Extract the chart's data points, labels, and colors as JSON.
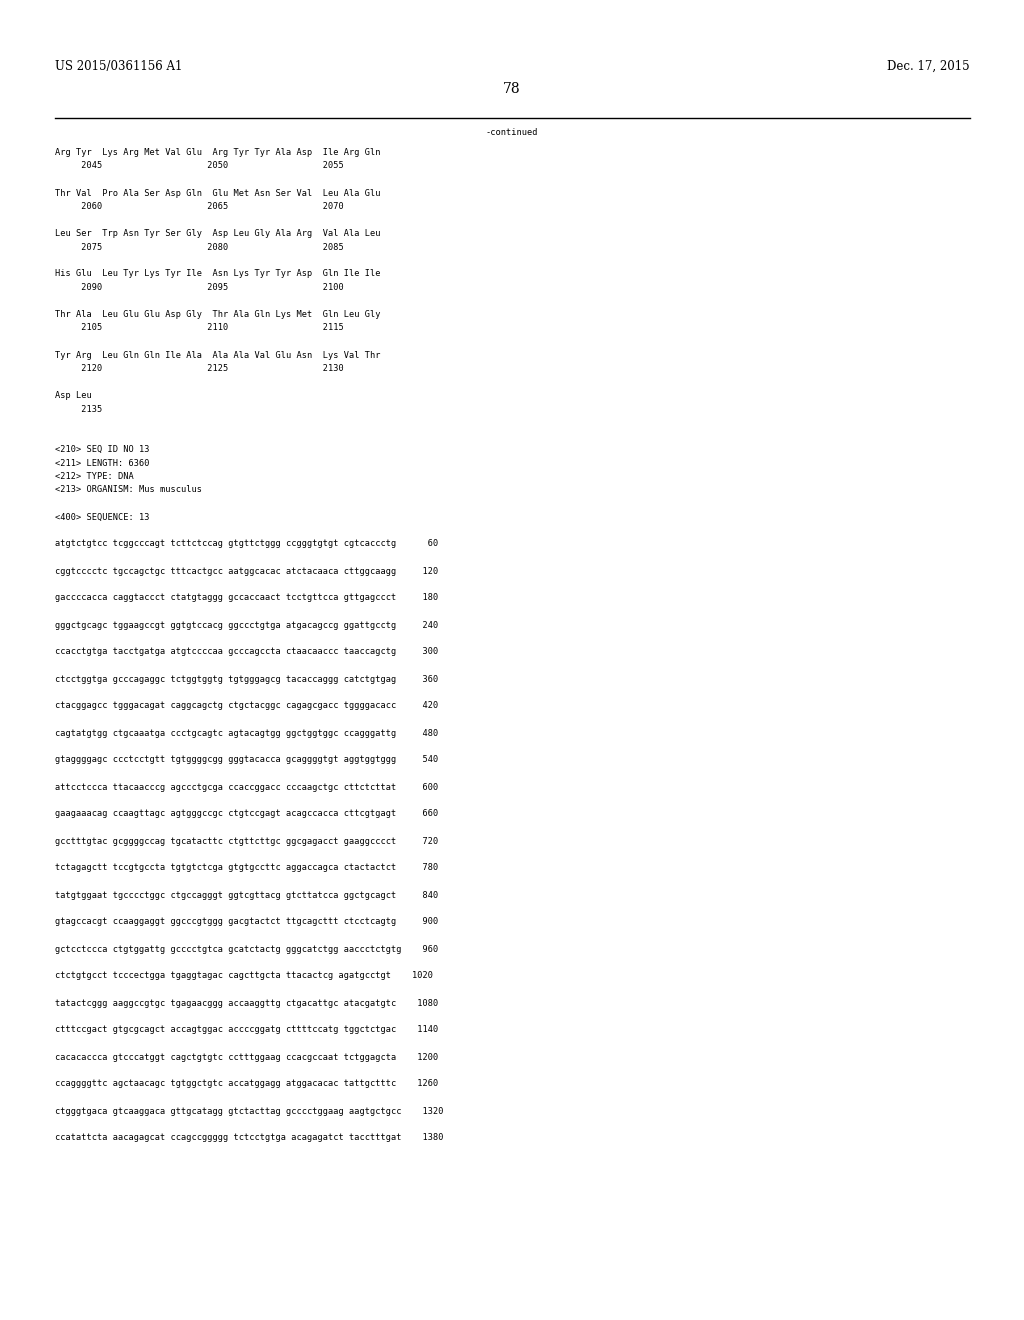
{
  "background_color": "#ffffff",
  "header_left": "US 2015/0361156 A1",
  "header_right": "Dec. 17, 2015",
  "page_number": "78",
  "continued_text": "-continued",
  "mono_fontsize": 6.2,
  "header_fontsize": 8.5,
  "page_num_fontsize": 10,
  "content": [
    "Arg Tyr  Lys Arg Met Val Glu  Arg Tyr Tyr Ala Asp  Ile Arg Gln",
    "     2045                    2050                  2055",
    "",
    "Thr Val  Pro Ala Ser Asp Gln  Glu Met Asn Ser Val  Leu Ala Glu",
    "     2060                    2065                  2070",
    "",
    "Leu Ser  Trp Asn Tyr Ser Gly  Asp Leu Gly Ala Arg  Val Ala Leu",
    "     2075                    2080                  2085",
    "",
    "His Glu  Leu Tyr Lys Tyr Ile  Asn Lys Tyr Tyr Asp  Gln Ile Ile",
    "     2090                    2095                  2100",
    "",
    "Thr Ala  Leu Glu Glu Asp Gly  Thr Ala Gln Lys Met  Gln Leu Gly",
    "     2105                    2110                  2115",
    "",
    "Tyr Arg  Leu Gln Gln Ile Ala  Ala Ala Val Glu Asn  Lys Val Thr",
    "     2120                    2125                  2130",
    "",
    "Asp Leu",
    "     2135",
    "",
    "",
    "<210> SEQ ID NO 13",
    "<211> LENGTH: 6360",
    "<212> TYPE: DNA",
    "<213> ORGANISM: Mus musculus",
    "",
    "<400> SEQUENCE: 13",
    "",
    "atgtctgtcc tcggcccagt tcttctccag gtgttctggg ccgggtgtgt cgtcaccctg      60",
    "",
    "cggtcccctc tgccagctgc tttcactgcc aatggcacac atctacaaca cttggcaagg     120",
    "",
    "gaccccacca caggtaccct ctatgtaggg gccaccaact tcctgttcca gttgagccct     180",
    "",
    "gggctgcagc tggaagccgt ggtgtccacg ggccctgtga atgacagccg ggattgcctg     240",
    "",
    "ccacctgtga tacctgatga atgtccccaa gcccagccta ctaacaaccc taaccagctg     300",
    "",
    "ctcctggtga gcccagaggc tctggtggtg tgtgggagcg tacaccaggg catctgtgag     360",
    "",
    "ctacggagcc tgggacagat caggcagctg ctgctacggc cagagcgacc tggggacacc     420",
    "",
    "cagtatgtgg ctgcaaatga ccctgcagtc agtacagtgg ggctggtggc ccagggattg     480",
    "",
    "gtaggggagc ccctcctgtt tgtggggcgg gggtacacca gcaggggtgt aggtggtggg     540",
    "",
    "attcctccca ttacaacccg agccctgcga ccaccggacc cccaagctgc cttctcttat     600",
    "",
    "gaagaaacag ccaagttagc agtgggccgc ctgtccgagt acagccacca cttcgtgagt     660",
    "",
    "gcctttgtac gcggggccag tgcatacttc ctgttcttgc ggcgagacct gaaggcccct     720",
    "",
    "tctagagctt tccgtgccta tgtgtctcga gtgtgccttc aggaccagca ctactactct     780",
    "",
    "tatgtggaat tgcccctggc ctgccagggt ggtcgttacg gtcttatcca ggctgcagct     840",
    "",
    "gtagccacgt ccaaggaggt ggcccgtggg gacgtactct ttgcagcttt ctcctcagtg     900",
    "",
    "gctcctccca ctgtggattg gcccctgtca gcatctactg gggcatctgg aaccctctgtg    960",
    "",
    "ctctgtgcct tcccectgga tgaggtagac cagcttgcta ttacactcg agatgcctgt    1020",
    "",
    "tatactcggg aaggccgtgc tgagaacggg accaaggttg ctgacattgc atacgatgtc    1080",
    "",
    "ctttccgact gtgcgcagct accagtggac accccggatg cttttccatg tggctctgac    1140",
    "",
    "cacacaccca gtcccatggt cagctgtgtc cctttggaag ccacgccaat tctggagcta    1200",
    "",
    "ccaggggttc agctaacagc tgtggctgtc accatggagg atggacacac tattgctttc    1260",
    "",
    "ctgggtgaca gtcaaggaca gttgcatagg gtctacttag gcccctggaag aagtgctgcc    1320",
    "",
    "ccatattcta aacagagcat ccagccggggg tctcctgtga acagagatct tacctttgat    1380"
  ]
}
